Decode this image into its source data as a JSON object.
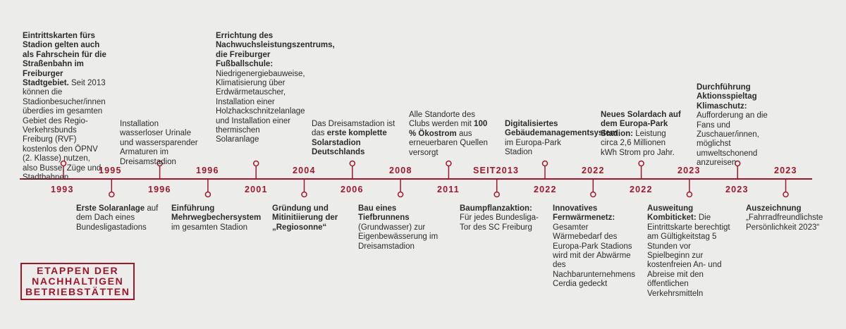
{
  "title": {
    "lines": [
      "ETAPPEN DER",
      "NACHHALTIGEN",
      "BETRIEBSTÄTTEN"
    ]
  },
  "colors": {
    "accent": "#a0172b",
    "background": "#ececeb",
    "text": "#2b2b2b"
  },
  "events": [
    {
      "year": "1993",
      "bold": "Eintrittskarten fürs Stadion gelten auch als Fahrschein für die Straßenbahn im Freiburger Stadtgebiet.",
      "text": "Seit 2013 können die Stadionbesucher/innen überdies im gesamten Gebiet des Regio-Verkehrsbunds Freiburg (RVF) kostenlos den ÖPNV (2. Klasse) nutzen, also Busse, Züge und Stadtbahnen."
    },
    {
      "year": "1995",
      "bold": "Erste Solaranlage",
      "text": "auf dem Dach eines Bundesligastadions"
    },
    {
      "year": "1996",
      "bold": "",
      "text": "Installation wasserloser Urinale und wassersparender Armaturen im Dreisamstadion"
    },
    {
      "year": "1996",
      "bold": "Einführung Mehrwegbechersystem",
      "text": "im gesamten Stadion"
    },
    {
      "year": "2001",
      "bold": "Errichtung des Nachwuchsleistungszentrums, die Freiburger Fußballschule:",
      "text": "Niedrigenergiebauweise, Klimatisierung über Erdwärmetauscher, Installation einer Holzhackschnitzelanlage und Installation einer thermischen Solaranlage"
    },
    {
      "year": "2004",
      "bold": "Gründung und Mitinitiierung der „Regiosonne“",
      "text": ""
    },
    {
      "year": "2006",
      "pre": "Das Dreisamstadion ist das",
      "bold": "erste komplette Solarstadion Deutschlands",
      "text": ""
    },
    {
      "year": "2008",
      "bold": "Bau eines Tiefbrunnens",
      "text": "(Grundwasser) zur Eigenbewässerung im Dreisamstadion"
    },
    {
      "year": "2011",
      "pre": "Alle Standorte des Clubs werden mit",
      "bold": "100 % Ökostrom",
      "text": "aus erneuerbaren Quellen versorgt"
    },
    {
      "year": "SEIT2013",
      "bold": "Baumpflanzaktion:",
      "text": "Für jedes Bundesliga-Tor des SC Freiburg"
    },
    {
      "year": "2022",
      "bold": "Digitalisiertes Gebäudemanagementsystem",
      "text": "im Europa-Park Stadion"
    },
    {
      "year": "2022",
      "bold": "Innovatives Fernwärmenetz:",
      "text": "Gesamter Wärmebedarf des Europa-Park Stadions wird mit der Abwärme des Nachbarunternehmens Cerdia gedeckt"
    },
    {
      "year": "2022",
      "bold": "Neues Solardach auf dem Europa-Park Stadion:",
      "text": "Leistung circa 2,6 Millionen kWh Strom pro Jahr."
    },
    {
      "year": "2023",
      "bold": "Ausweitung Kombiticket:",
      "text": "Die Eintrittskarte berechtigt am Gültigkeitstag 5 Stunden vor Spielbeginn zur kostenfreien An- und Abreise mit den öffentlichen Verkehrsmitteln"
    },
    {
      "year": "2023",
      "bold": "Durchführung Aktionsspieltag Klimaschutz:",
      "text": "Aufforderung an die Fans und Zuschauer/innen, möglichst umweltschonend anzureisen"
    },
    {
      "year": "2023",
      "bold": "Auszeichnung",
      "text": "„Fahrradfreundlichste Persönlichkeit 2023“"
    }
  ]
}
